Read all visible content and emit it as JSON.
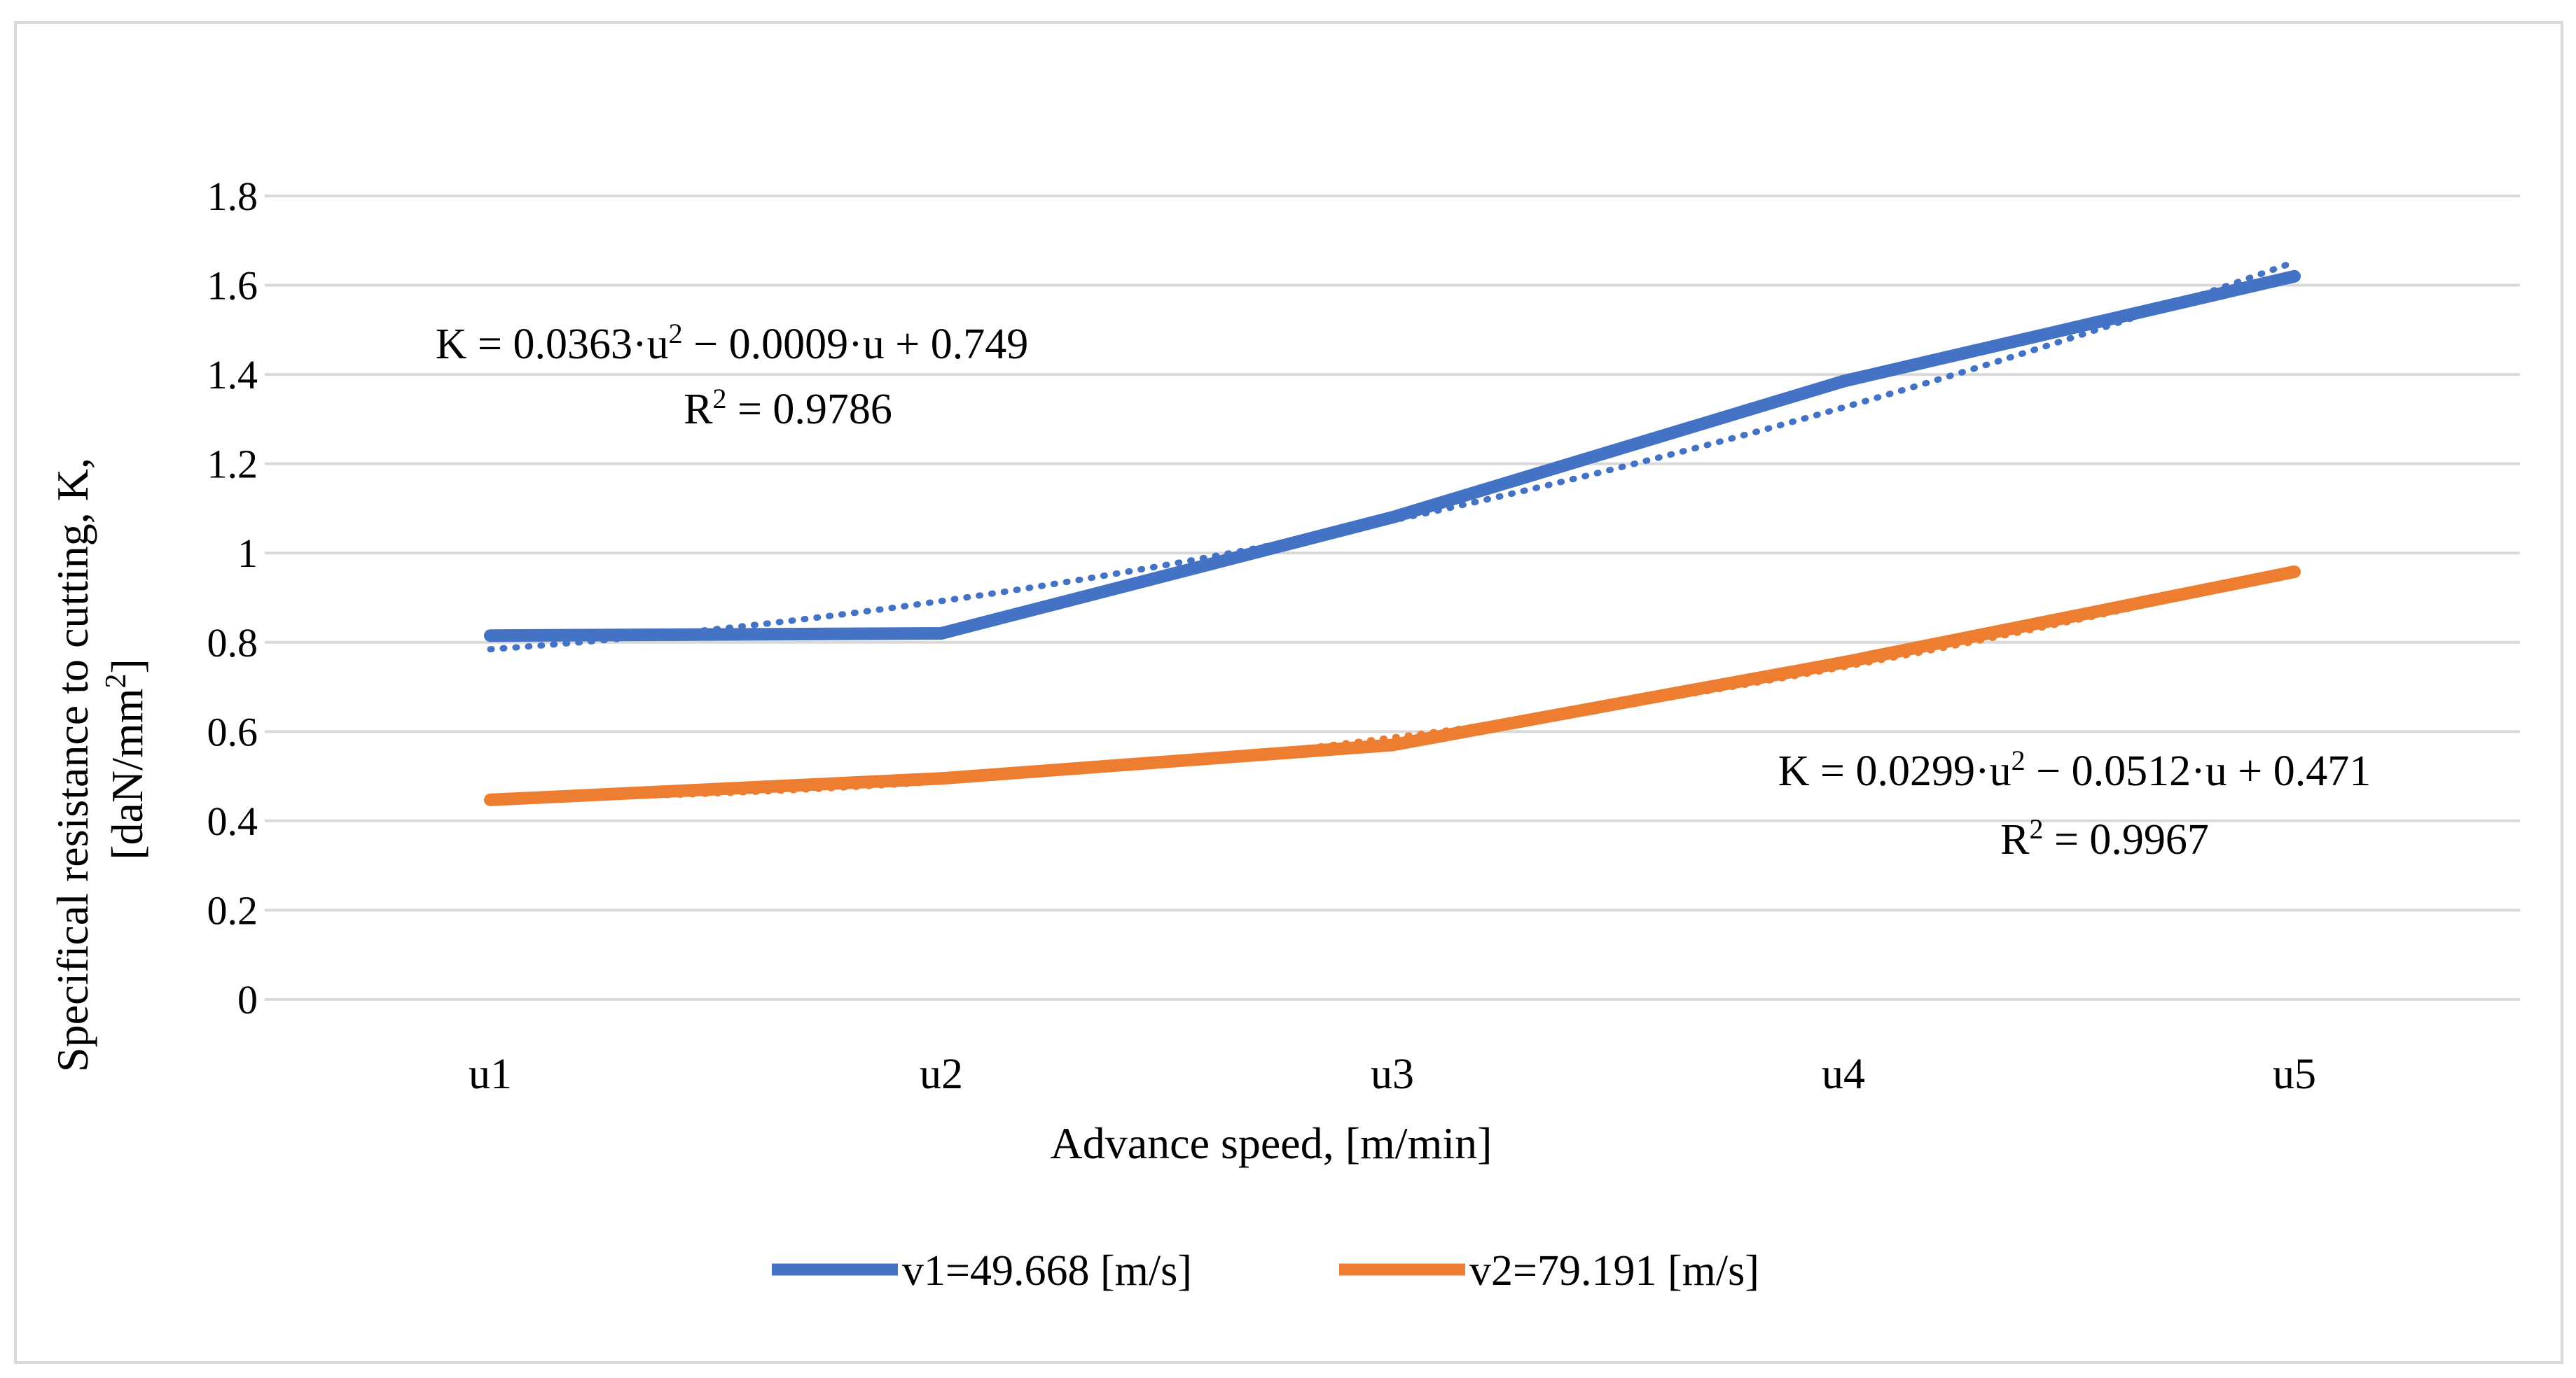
{
  "chart_data": {
    "type": "line",
    "title": "",
    "xlabel": "Advance speed, [m/min]",
    "ylabel_line1": "Specifical resistance to cutting, K,",
    "ylabel_line2_prefix": "[daN/mm",
    "ylabel_line2_sup": "2",
    "ylabel_line2_suffix": "]",
    "categories": [
      "u1",
      "u2",
      "u3",
      "u4",
      "u5"
    ],
    "ylim": [
      0,
      1.8
    ],
    "yticks": [
      "0",
      "0.2",
      "0.4",
      "0.6",
      "0.8",
      "1",
      "1.2",
      "1.4",
      "1.6",
      "1.8"
    ],
    "ytick_values": [
      0,
      0.2,
      0.4,
      0.6,
      0.8,
      1.0,
      1.2,
      1.4,
      1.6,
      1.8
    ],
    "grid": true,
    "legend_position": "bottom",
    "series": [
      {
        "name": "v1=49.668 [m/s]",
        "color": "#4472C4",
        "values": [
          0.815,
          0.82,
          1.08,
          1.385,
          1.62
        ],
        "trendline_type": "polynomial",
        "trendline": {
          "a": 0.0363,
          "b": -0.0009,
          "c": 0.749
        },
        "equation_main": "K = 0.0363·u",
        "equation_sup": "2",
        "equation_rest": " − 0.0009·u + 0.749",
        "r2_prefix": "R",
        "r2_sup": "2",
        "r2_rest": " = 0.9786"
      },
      {
        "name": "v2=79.191 [m/s]",
        "color": "#ED7D31",
        "values": [
          0.447,
          0.495,
          0.57,
          0.755,
          0.958
        ],
        "trendline_type": "polynomial",
        "trendline": {
          "a": 0.0299,
          "b": -0.0512,
          "c": 0.471
        },
        "equation_main": "K = 0.0299·u",
        "equation_sup": "2",
        "equation_rest": " − 0.0512·u + 0.471",
        "r2_prefix": "R",
        "r2_sup": "2",
        "r2_rest": " = 0.9967"
      }
    ]
  },
  "style": {
    "grid_color": "#D9D9D9",
    "frame_color": "#D9D9D9"
  }
}
